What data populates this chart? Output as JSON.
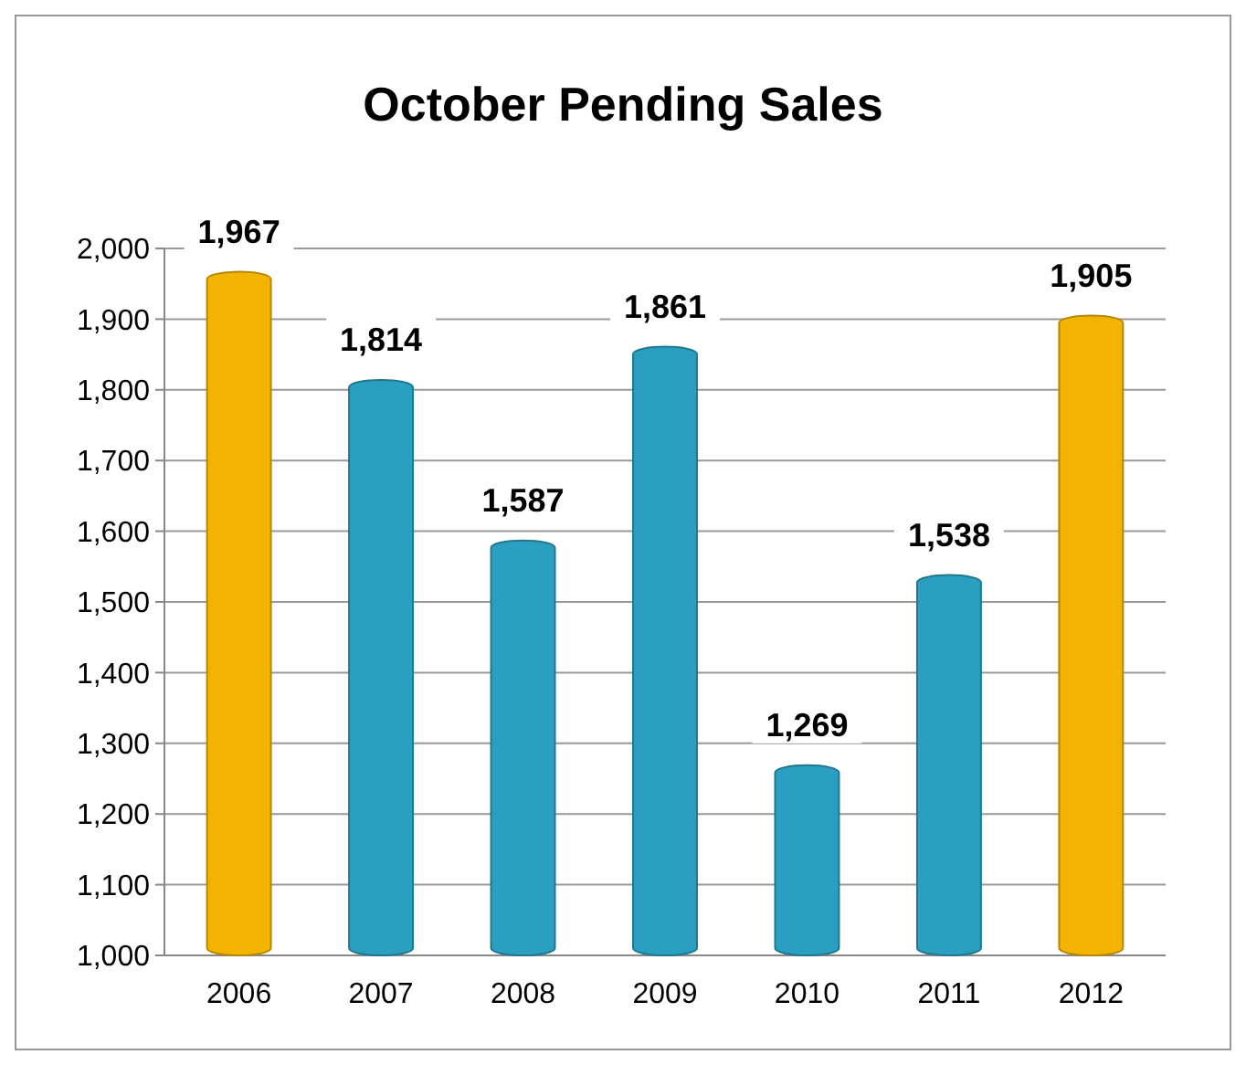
{
  "chart_data": {
    "type": "bar",
    "title": "October Pending Sales",
    "categories": [
      "2006",
      "2007",
      "2008",
      "2009",
      "2010",
      "2011",
      "2012"
    ],
    "values": [
      1967,
      1814,
      1587,
      1861,
      1269,
      1538,
      1905
    ],
    "colors": [
      "#f2b400",
      "#2b9fc0",
      "#2b9fc0",
      "#2b9fc0",
      "#2b9fc0",
      "#2b9fc0",
      "#f2b400"
    ],
    "ylim": [
      1000,
      2000
    ],
    "yticks": [
      {
        "value": 1000,
        "label": "1,000"
      },
      {
        "value": 1100,
        "label": "1,100"
      },
      {
        "value": 1200,
        "label": "1,200"
      },
      {
        "value": 1300,
        "label": "1,300"
      },
      {
        "value": 1400,
        "label": "1,400"
      },
      {
        "value": 1500,
        "label": "1,500"
      },
      {
        "value": 1600,
        "label": "1,600"
      },
      {
        "value": 1700,
        "label": "1,700"
      },
      {
        "value": 1800,
        "label": "1,800"
      },
      {
        "value": 1900,
        "label": "1,900"
      },
      {
        "value": 2000,
        "label": "2,000"
      }
    ],
    "value_labels": [
      "1,967",
      "1,814",
      "1,587",
      "1,861",
      "1,269",
      "1,538",
      "1,905"
    ],
    "grid": true
  }
}
